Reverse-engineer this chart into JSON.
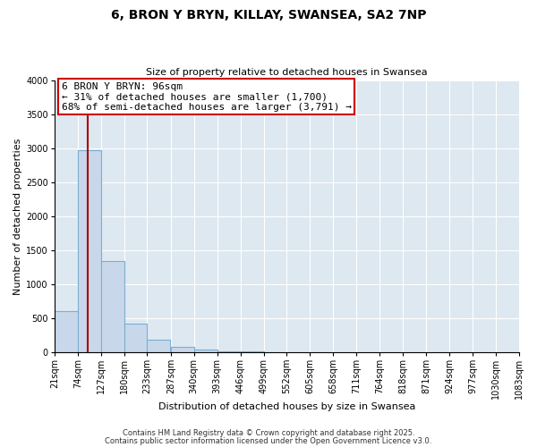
{
  "title": "6, BRON Y BRYN, KILLAY, SWANSEA, SA2 7NP",
  "subtitle": "Size of property relative to detached houses in Swansea",
  "xlabel": "Distribution of detached houses by size in Swansea",
  "ylabel": "Number of detached properties",
  "bar_values": [
    600,
    2970,
    1340,
    420,
    180,
    80,
    40,
    10,
    5
  ],
  "bin_edges": [
    21,
    74,
    127,
    180,
    233,
    287,
    340,
    393,
    446,
    499
  ],
  "all_bins": [
    21,
    74,
    127,
    180,
    233,
    287,
    340,
    393,
    446,
    499,
    552,
    605,
    658,
    711,
    764,
    818,
    871,
    924,
    977,
    1030,
    1083
  ],
  "bar_color": "#c8d8ea",
  "bar_edge_color": "#7bafd4",
  "property_line_x": 96,
  "property_line_color": "#aa0000",
  "annotation_title": "6 BRON Y BRYN: 96sqm",
  "annotation_line1": "← 31% of detached houses are smaller (1,700)",
  "annotation_line2": "68% of semi-detached houses are larger (3,791) →",
  "annotation_box_facecolor": "#ffffff",
  "annotation_box_edgecolor": "#cc0000",
  "ylim": [
    0,
    4000
  ],
  "yticks": [
    0,
    500,
    1000,
    1500,
    2000,
    2500,
    3000,
    3500,
    4000
  ],
  "footnote1": "Contains HM Land Registry data © Crown copyright and database right 2025.",
  "footnote2": "Contains public sector information licensed under the Open Government Licence v3.0.",
  "bg_color": "#ffffff",
  "plot_bg_color": "#dde8f0",
  "grid_color": "#ffffff",
  "title_fontsize": 10,
  "subtitle_fontsize": 8,
  "xlabel_fontsize": 8,
  "ylabel_fontsize": 8,
  "tick_fontsize": 7,
  "annot_fontsize": 8,
  "footnote_fontsize": 6
}
